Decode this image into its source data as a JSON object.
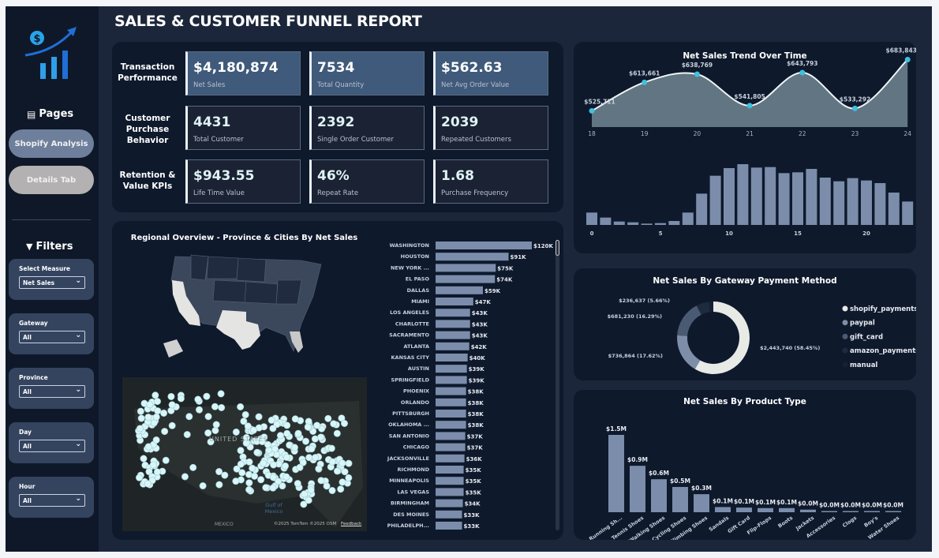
{
  "header": {
    "title": "SALES & CUSTOMER FUNNEL REPORT"
  },
  "sidebar": {
    "logo": "dollar-growth-chart-logo",
    "pages_label": "Pages",
    "pages": [
      {
        "label": "Shopify Analysis",
        "active": true
      },
      {
        "label": "Details Tab",
        "active": false
      }
    ],
    "filters_label": "Filters",
    "filters": [
      {
        "label": "Select Measure",
        "value": "Net Sales"
      },
      {
        "label": "Gateway",
        "value": "All"
      },
      {
        "label": "Province",
        "value": "All"
      },
      {
        "label": "Day",
        "value": "All"
      },
      {
        "label": "Hour",
        "value": "All"
      }
    ]
  },
  "kpis": {
    "rows": [
      {
        "label": "Transaction Performance",
        "cards": [
          {
            "value": "$4,180,874",
            "label": "Net Sales"
          },
          {
            "value": "7534",
            "label": "Total Quantity"
          },
          {
            "value": "$562.63",
            "label": "Net Avg Order Value"
          }
        ]
      },
      {
        "label": "Customer Purchase Behavior",
        "cards": [
          {
            "value": "4431",
            "label": "Total Customer"
          },
          {
            "value": "2392",
            "label": "Single Order Customer"
          },
          {
            "value": "2039",
            "label": "Repeated Customers"
          }
        ]
      },
      {
        "label": "Retention & Value KPIs",
        "cards": [
          {
            "value": "$943.55",
            "label": "Life Time Value"
          },
          {
            "value": "46%",
            "label": "Repeat Rate"
          },
          {
            "value": "1.68",
            "label": "Purchase Frequency"
          }
        ]
      }
    ]
  },
  "map": {
    "title": "Regional Overview - Province & Cities By Net Sales",
    "country_label": "UNITED STATES",
    "gulf_label": "Gulf of Mexico",
    "mexico_label": "MEXICO",
    "attribution": "©2025 TomTom ©2025 OSM",
    "feedback": "Feedback"
  },
  "colors": {
    "bar": "#7b8dab",
    "accent": "#3fc1e0",
    "dot": "#d7f6fa"
  },
  "chart_data": [
    {
      "type": "bar",
      "orientation": "horizontal",
      "title": "",
      "categories": [
        "WASHINGTON",
        "HOUSTON",
        "NEW YORK ...",
        "EL PASO",
        "DALLAS",
        "MIAMI",
        "LOS ANGELES",
        "CHARLOTTE",
        "SACRAMENTO",
        "ATLANTA",
        "KANSAS CITY",
        "AUSTIN",
        "SPRINGFIELD",
        "PHOENIX",
        "ORLANDO",
        "PITTSBURGH",
        "OKLAHOMA ...",
        "SAN ANTONIO",
        "CHICAGO",
        "JACKSONVILLE",
        "RICHMOND",
        "MINNEAPOLIS",
        "LAS VEGAS",
        "BIRMINGHAM",
        "DES MOINES",
        "PHILADELPH..."
      ],
      "values": [
        120,
        91,
        75,
        74,
        59,
        47,
        43,
        43,
        43,
        42,
        40,
        39,
        39,
        38,
        38,
        38,
        38,
        37,
        37,
        36,
        35,
        35,
        35,
        34,
        33,
        33
      ],
      "labels": [
        "$120K",
        "$91K",
        "$75K",
        "$74K",
        "$59K",
        "$47K",
        "$43K",
        "$43K",
        "$43K",
        "$42K",
        "$40K",
        "$39K",
        "$39K",
        "$38K",
        "$38K",
        "$38K",
        "$38K",
        "$37K",
        "$37K",
        "$36K",
        "$35K",
        "$35K",
        "$35K",
        "$34K",
        "$33K",
        "$33K"
      ]
    },
    {
      "type": "area",
      "title": "Net Sales Trend Over Time",
      "x": [
        18,
        19,
        20,
        21,
        22,
        23,
        24
      ],
      "values": [
        525711,
        613661,
        638769,
        541805,
        643793,
        533292,
        683843
      ],
      "labels": [
        "$525,711",
        "$613,661",
        "$638,769",
        "$541,805",
        "$643,793",
        "$533,292",
        "$683,843"
      ]
    },
    {
      "type": "bar",
      "title": "",
      "x": [
        0,
        1,
        2,
        3,
        4,
        5,
        6,
        7,
        8,
        9,
        10,
        11,
        12,
        13,
        14,
        15,
        16,
        17,
        18,
        19,
        20,
        21,
        22,
        23
      ],
      "xticks": [
        "0",
        "5",
        "10",
        "15",
        "20"
      ],
      "values": [
        47,
        28,
        13,
        10,
        5,
        7,
        15,
        47,
        119,
        187,
        216,
        231,
        218,
        220,
        197,
        200,
        213,
        180,
        166,
        178,
        169,
        159,
        123,
        89
      ]
    },
    {
      "type": "pie",
      "title": "Net Sales By Gateway Payment Method",
      "series": [
        {
          "name": "shopify_payments",
          "value": 2443740,
          "pct": 58.45,
          "label": "$2,443,740 (58.45%)",
          "color": "#e8eae6"
        },
        {
          "name": "paypal",
          "value": 736864,
          "pct": 17.62,
          "label": "$736,864 (17.62%)",
          "color": "#7e8ea8"
        },
        {
          "name": "gift_card",
          "value": 681230,
          "pct": 16.29,
          "label": "$681,230 (16.29%)",
          "color": "#4b5a73"
        },
        {
          "name": "amazon_payments",
          "value": 236637,
          "pct": 5.66,
          "label": "$236,637 (5.66%)",
          "color": "#1e2a3f"
        },
        {
          "name": "manual",
          "pct": 1.98,
          "color": "#152035"
        }
      ]
    },
    {
      "type": "bar",
      "title": "Net Sales By Product Type",
      "categories": [
        "Running Sh...",
        "Tennis Shoes",
        "Walking Shoes",
        "Cycling Shoes",
        "Climbing Shoes",
        "Sandals",
        "Gift Card",
        "Flip-Flops",
        "Boots",
        "Jackets",
        "Accessories",
        "Clogs",
        "Boy's",
        "Water Shoes"
      ],
      "values": [
        1.5,
        0.9,
        0.64,
        0.49,
        0.35,
        0.1,
        0.09,
        0.08,
        0.08,
        0.05,
        0.01,
        0.01,
        0.01,
        0.01
      ],
      "labels": [
        "$1.5M",
        "$0.9M",
        "$0.6M",
        "$0.5M",
        "$0.3M",
        "$0.1M",
        "$0.1M",
        "$0.1M",
        "$0.1M",
        "$0.0M",
        "$0.0M",
        "$0.0M",
        "$0.0M",
        "$0.0M"
      ]
    }
  ]
}
